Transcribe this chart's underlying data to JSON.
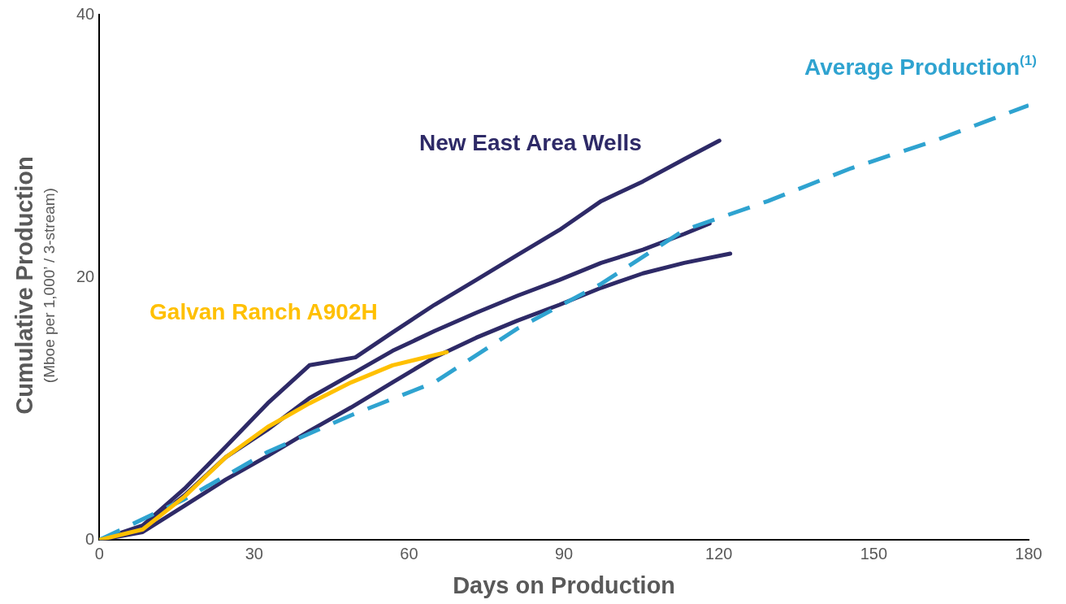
{
  "chart_data": {
    "type": "line",
    "xlabel": "Days on Production",
    "ylabel": "Cumulative Production\n(Mboe per 1,000’ / 3-stream)",
    "xlim": [
      0,
      180
    ],
    "xticks": [
      0,
      30,
      60,
      90,
      120,
      150,
      180
    ],
    "ylim": [
      0,
      40
    ],
    "yticks": [
      0,
      20,
      40
    ],
    "grid": false,
    "legend": false,
    "marker": "none",
    "series": [
      {
        "name": "New East Area Wells",
        "color": "#2e2a67",
        "x": [
          0,
          8.4,
          16.5,
          24.5,
          32.6,
          40.7,
          49.6,
          56.8,
          64.9,
          73,
          81,
          89.1,
          97.2,
          105.3,
          113.3,
          120.1
        ],
        "values": [
          0,
          1.1,
          3.9,
          7.1,
          10.4,
          13.3,
          13.9,
          15.8,
          17.9,
          19.8,
          21.7,
          23.6,
          25.8,
          27.3,
          29,
          30.4
        ]
      },
      {
        "color": "#2e2a67",
        "x": [
          0,
          8.4,
          16.5,
          24.5,
          32.6,
          40.7,
          48.8,
          56.8,
          64.9,
          73,
          81,
          89.1,
          97.2,
          105.3,
          113.3,
          118.2
        ],
        "values": [
          0,
          0.9,
          3.4,
          6.3,
          8.4,
          10.8,
          12.6,
          14.4,
          15.9,
          17.3,
          18.6,
          19.8,
          21.1,
          22.1,
          23.3,
          24.1
        ]
      },
      {
        "color": "#2e2a67",
        "x": [
          0,
          8.4,
          16.5,
          24.5,
          32.6,
          40.7,
          48.8,
          56.8,
          64.9,
          73,
          81,
          89.1,
          97.2,
          105.3,
          113.3,
          122.2
        ],
        "values": [
          0,
          0.6,
          2.6,
          4.6,
          6.4,
          8.3,
          10.1,
          12,
          13.9,
          15.4,
          16.7,
          17.9,
          19.2,
          20.3,
          21.1,
          21.8
        ]
      },
      {
        "name": "Average Production$^{(1)}$",
        "color": "#2fa3d0",
        "line_style": "dashed",
        "x": [
          0,
          16.5,
          32.6,
          48.8,
          64.9,
          81,
          97.2,
          113.3,
          129.5,
          145.6,
          161.8,
          180
        ],
        "values": [
          0,
          3.1,
          6.7,
          9.5,
          12,
          16.1,
          19.5,
          23.6,
          25.8,
          28.3,
          30.4,
          33.1
        ]
      },
      {
        "name": "Galvan Ranch A902H",
        "color": "#ffc000",
        "x": [
          0,
          8.4,
          16.5,
          24.5,
          32.6,
          40.7,
          48.8,
          56.8,
          67.3
        ],
        "values": [
          0,
          0.8,
          3.3,
          6.3,
          8.6,
          10.4,
          12,
          13.3,
          14.3
        ]
      }
    ]
  }
}
